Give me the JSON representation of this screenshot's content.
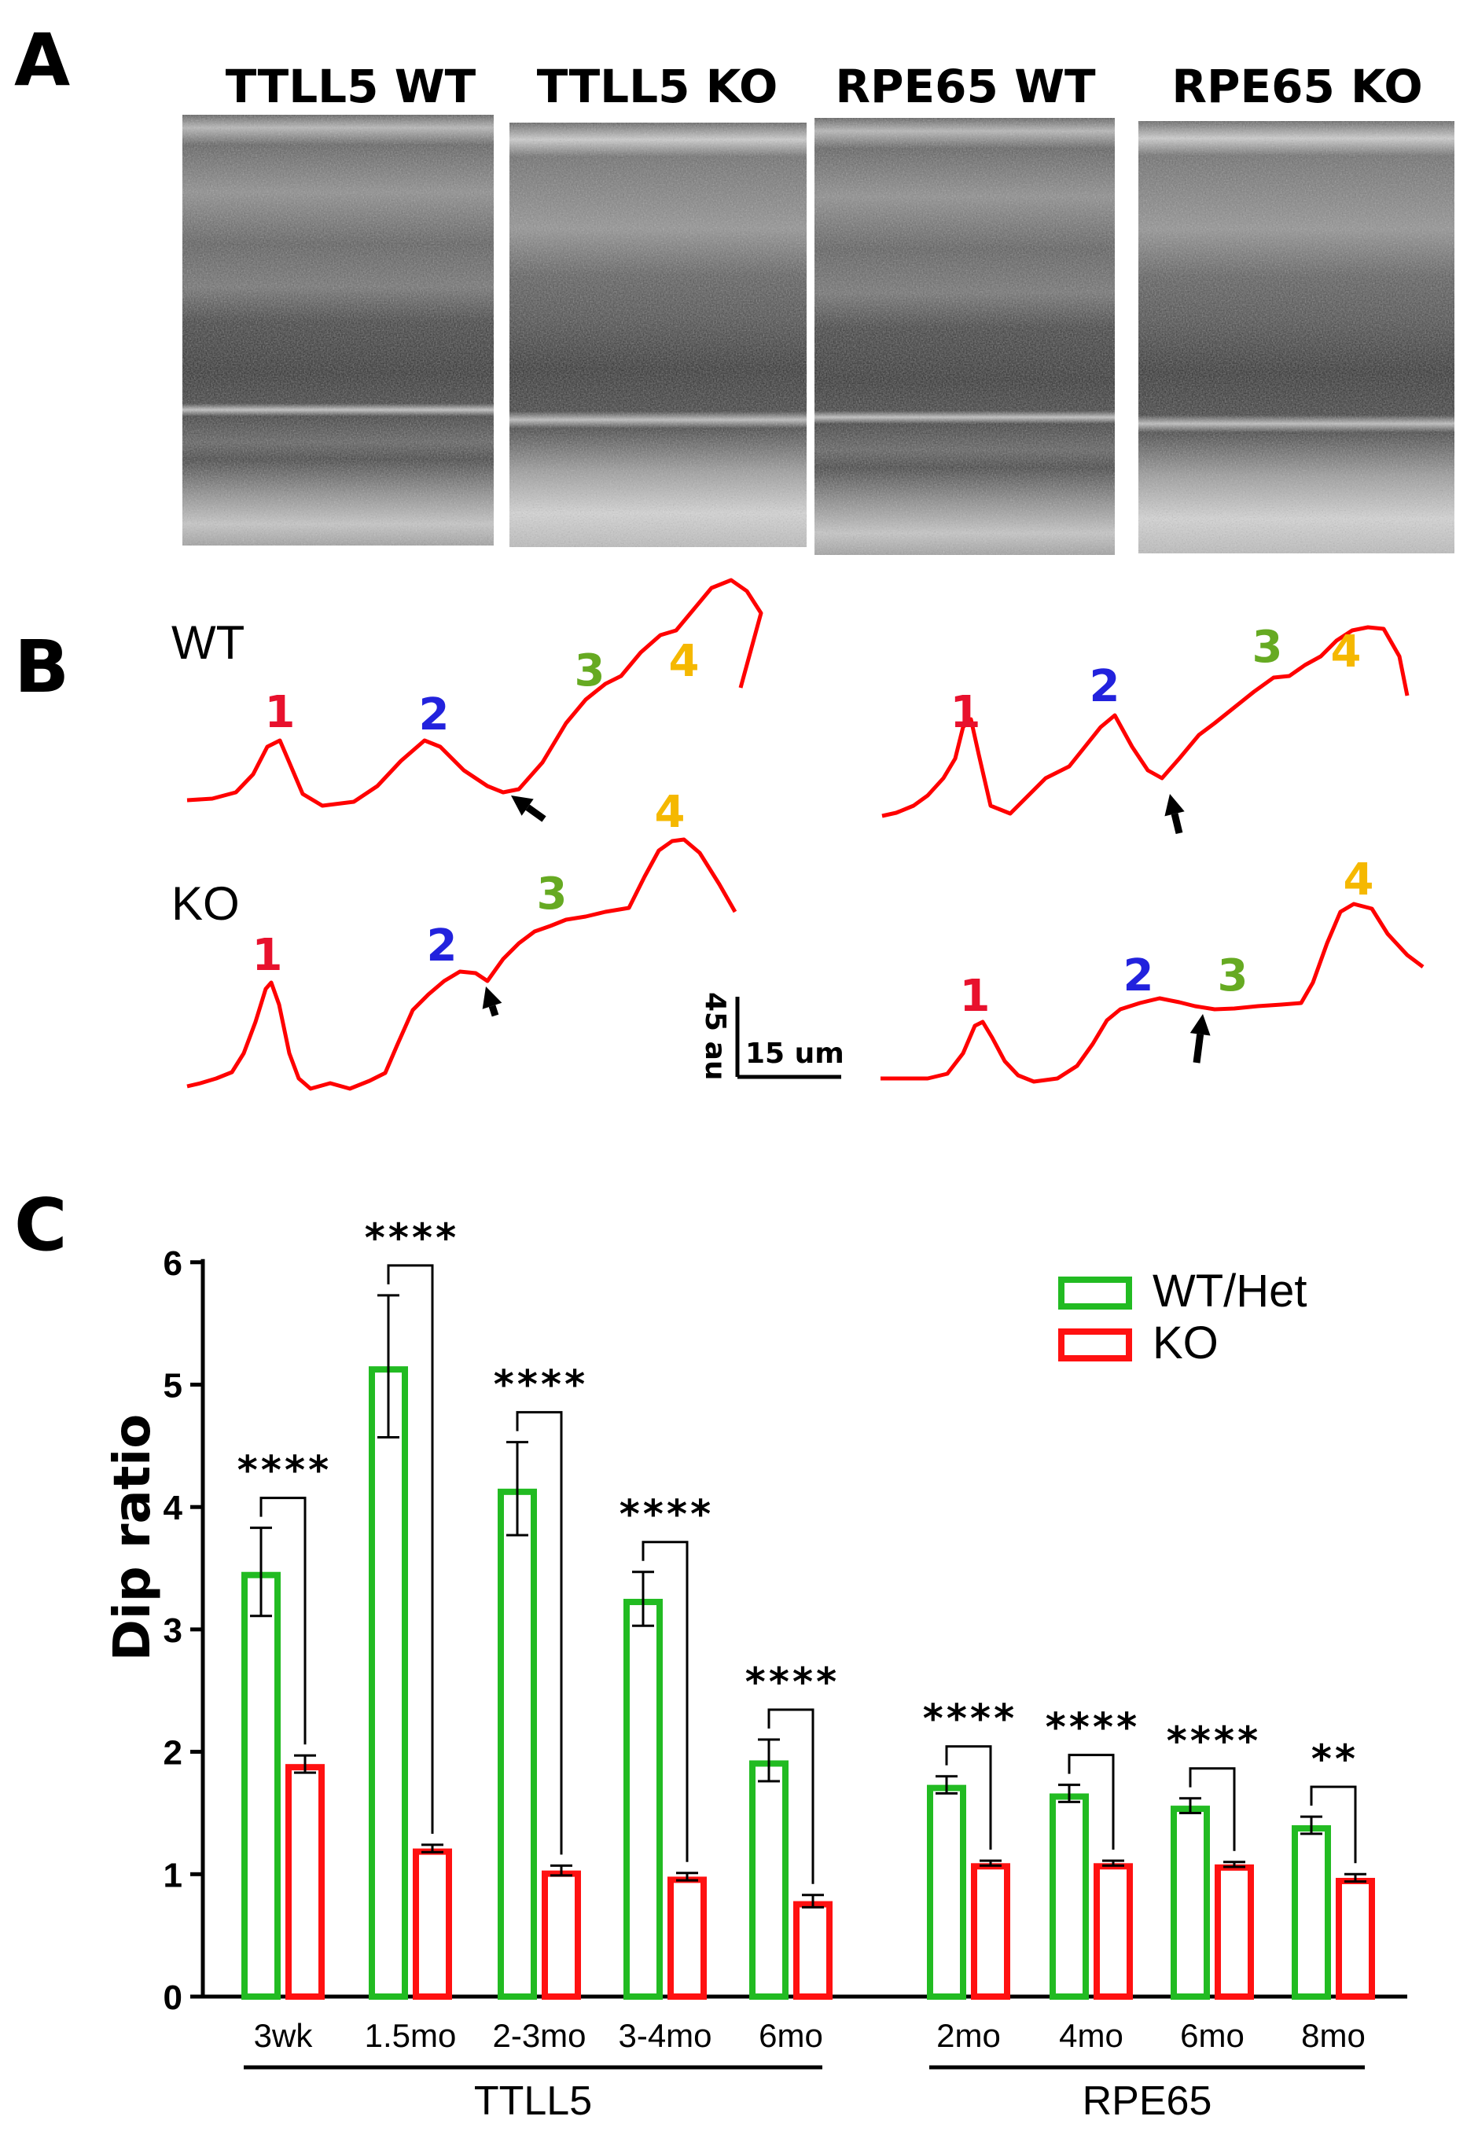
{
  "panels": {
    "a": {
      "letter": "A",
      "images": [
        {
          "label": "TTLL5 WT"
        },
        {
          "label": "TTLL5 KO"
        },
        {
          "label": "RPE65 WT"
        },
        {
          "label": "RPE65 KO"
        }
      ]
    },
    "b": {
      "letter": "B",
      "rows": {
        "wt": "WT",
        "ko": "KO"
      },
      "peak_labels": [
        "1",
        "2",
        "3",
        "4"
      ],
      "scale": {
        "vertical": "45 au",
        "horizontal": "15 um"
      },
      "colors": {
        "trace": "#ff0000",
        "p1": "#e8112d",
        "p2": "#2222dd",
        "p3": "#66aa22",
        "p4": "#f5b800",
        "arrow": "#000000"
      }
    },
    "c": {
      "letter": "C"
    }
  },
  "chart_data": {
    "type": "bar",
    "ylabel": "Dip ratio",
    "ylim": [
      0,
      6
    ],
    "yticks": [
      "0",
      "1",
      "2",
      "3",
      "4",
      "5",
      "6"
    ],
    "categories": [
      "3wk",
      "1.5mo",
      "2-3mo",
      "3-4mo",
      "6mo",
      "2mo",
      "4mo",
      "6mo",
      "8mo"
    ],
    "groups": [
      {
        "name": "TTLL5",
        "start": 0,
        "end": 4
      },
      {
        "name": "RPE65",
        "start": 5,
        "end": 8
      }
    ],
    "series": [
      {
        "name": "WT/Het",
        "color": "#22bb22",
        "values": [
          3.47,
          5.15,
          4.15,
          3.25,
          1.93,
          1.73,
          1.66,
          1.56,
          1.4
        ],
        "errors": [
          0.36,
          0.58,
          0.38,
          0.22,
          0.17,
          0.07,
          0.07,
          0.06,
          0.07
        ]
      },
      {
        "name": "KO",
        "color": "#ff1111",
        "values": [
          1.9,
          1.21,
          1.03,
          0.98,
          0.78,
          1.09,
          1.09,
          1.08,
          0.97
        ],
        "errors": [
          0.07,
          0.03,
          0.04,
          0.03,
          0.05,
          0.02,
          0.02,
          0.02,
          0.03
        ]
      }
    ],
    "significance": [
      "****",
      "****",
      "****",
      "****",
      "****",
      "****",
      "****",
      "****",
      "**"
    ],
    "legend_position": "top-right"
  }
}
